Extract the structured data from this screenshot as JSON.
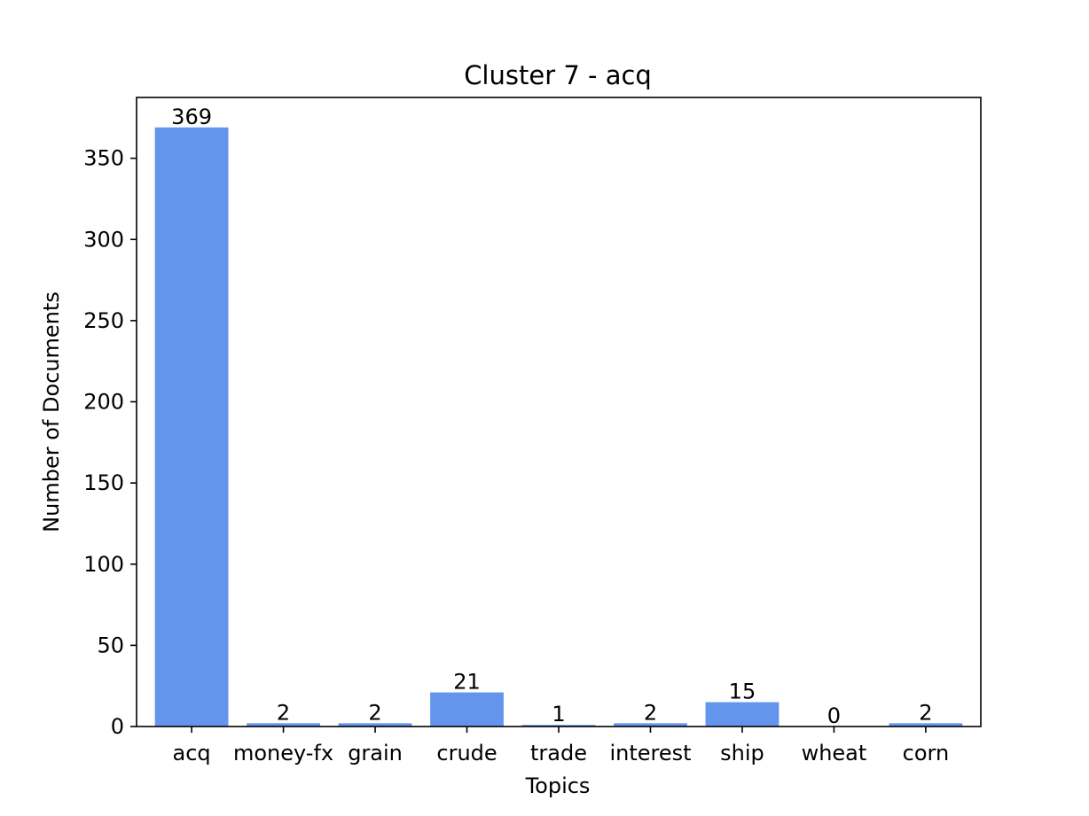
{
  "chart_data": {
    "type": "bar",
    "title": "Cluster 7 - acq",
    "xlabel": "Topics",
    "ylabel": "Number of Documents",
    "categories": [
      "acq",
      "money-fx",
      "grain",
      "crude",
      "trade",
      "interest",
      "ship",
      "wheat",
      "corn"
    ],
    "values": [
      369,
      2,
      2,
      21,
      1,
      2,
      15,
      0,
      2
    ],
    "data_labels": [
      "369",
      "2",
      "2",
      "21",
      "1",
      "2",
      "15",
      "0",
      "2"
    ],
    "ylim": [
      0,
      387.45
    ],
    "yticks": [
      0,
      50,
      100,
      150,
      200,
      250,
      300,
      350
    ],
    "ytick_labels": [
      "0",
      "50",
      "100",
      "150",
      "200",
      "250",
      "300",
      "350"
    ],
    "grid": false,
    "bar_color": "#6495ED"
  }
}
